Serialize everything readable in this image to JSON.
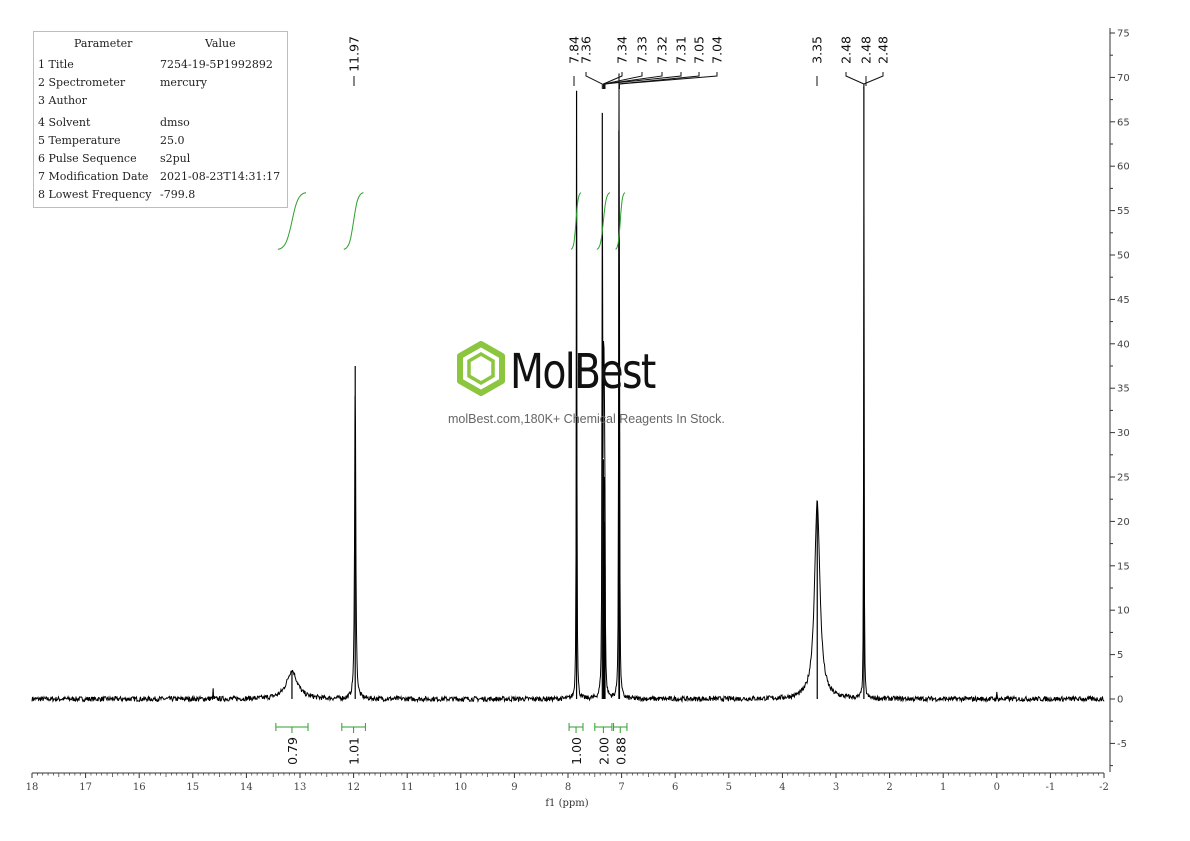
{
  "params": {
    "header": [
      "Parameter",
      "Value"
    ],
    "rows": [
      [
        "1 Title",
        "7254-19-5P1992892"
      ],
      [
        "2 Spectrometer",
        "mercury"
      ],
      [
        "3 Author",
        ""
      ],
      [
        "4 Solvent",
        "dmso"
      ],
      [
        "5 Temperature",
        "25.0"
      ],
      [
        "6 Pulse Sequence",
        "s2pul"
      ],
      [
        "7 Modification Date",
        "2021-08-23T14:31:17"
      ],
      [
        "8 Lowest Frequency",
        "-799.8"
      ]
    ]
  },
  "watermark": {
    "brand": "MolBest",
    "tagline": "molBest.com,180K+ Chemical Reagents In Stock."
  },
  "colors": {
    "spectrum": "#000000",
    "integral": "#2ca02c",
    "axis": "#333333",
    "brand": "#8cc63f"
  },
  "chart_data": {
    "type": "line",
    "title": "",
    "xlabel": "f1 (ppm)",
    "ylabel": "",
    "xlim": [
      18,
      -2
    ],
    "ylim": [
      -8,
      75
    ],
    "x_ticks": [
      "18",
      "17",
      "16",
      "15",
      "14",
      "13",
      "12",
      "11",
      "10",
      "9",
      "8",
      "7",
      "6",
      "5",
      "4",
      "3",
      "2",
      "1",
      "0",
      "-1",
      "-2"
    ],
    "y_ticks": [
      "75",
      "70",
      "65",
      "60",
      "55",
      "50",
      "45",
      "40",
      "35",
      "30",
      "25",
      "20",
      "15",
      "10",
      "5",
      "0",
      "-5"
    ],
    "peaks": [
      {
        "ppm": 13.15,
        "height": 3.2,
        "width": 0.12
      },
      {
        "ppm": 11.97,
        "height": 37.5,
        "width": 0.012
      },
      {
        "ppm": 7.84,
        "height": 68.5,
        "width": 0.006
      },
      {
        "ppm": 7.36,
        "height": 66.0,
        "width": 0.006
      },
      {
        "ppm": 7.34,
        "height": 27.0,
        "width": 0.006
      },
      {
        "ppm": 7.33,
        "height": 25.0,
        "width": 0.006
      },
      {
        "ppm": 7.32,
        "height": 20.0,
        "width": 0.006
      },
      {
        "ppm": 7.31,
        "height": 15.0,
        "width": 0.006
      },
      {
        "ppm": 7.05,
        "height": 64.0,
        "width": 0.006
      },
      {
        "ppm": 7.04,
        "height": 30.0,
        "width": 0.006
      },
      {
        "ppm": 3.35,
        "height": 22.3,
        "width": 0.06
      },
      {
        "ppm": 2.48,
        "height": 69.0,
        "width": 0.005
      },
      {
        "ppm": 14.62,
        "height": 1.2,
        "width": 0.004
      },
      {
        "ppm": 0.0,
        "height": 0.8,
        "width": 0.004
      }
    ],
    "peak_labels": [
      "11.97",
      "7.84",
      "7.36",
      "7.34",
      "7.33",
      "7.32",
      "7.31",
      "7.05",
      "7.04",
      "3.35",
      "2.48",
      "2.48",
      "2.48"
    ],
    "integrals": [
      {
        "from": 13.45,
        "to": 12.85,
        "value": "0.79"
      },
      {
        "from": 12.22,
        "to": 11.78,
        "value": "1.01"
      },
      {
        "from": 7.98,
        "to": 7.72,
        "value": "1.00"
      },
      {
        "from": 7.5,
        "to": 7.18,
        "value": "2.00"
      },
      {
        "from": 7.15,
        "to": 6.9,
        "value": "0.88"
      }
    ]
  }
}
